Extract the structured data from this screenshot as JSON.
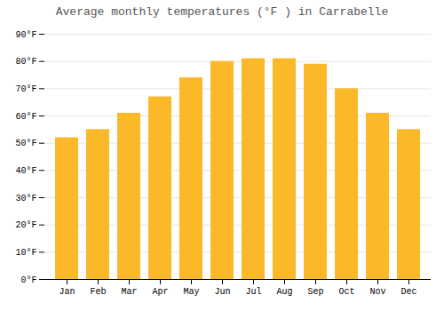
{
  "chart_data": {
    "type": "bar",
    "title": "Average monthly temperatures (°F ) in Carrabelle",
    "categories": [
      "Jan",
      "Feb",
      "Mar",
      "Apr",
      "May",
      "Jun",
      "Jul",
      "Aug",
      "Sep",
      "Oct",
      "Nov",
      "Dec"
    ],
    "values": [
      52,
      55,
      61,
      67,
      74,
      80,
      81,
      81,
      79,
      70,
      61,
      55
    ],
    "color": "#FBB829",
    "ylim": [
      0,
      90
    ],
    "yticks": [
      {
        "value": 0,
        "label": "0°F"
      },
      {
        "value": 10,
        "label": "10°F"
      },
      {
        "value": 20,
        "label": "20°F"
      },
      {
        "value": 30,
        "label": "30°F"
      },
      {
        "value": 40,
        "label": "40°F"
      },
      {
        "value": 50,
        "label": "50°F"
      },
      {
        "value": 60,
        "label": "60°F"
      },
      {
        "value": 70,
        "label": "70°F"
      },
      {
        "value": 80,
        "label": "80°F"
      },
      {
        "value": 90,
        "label": "90°F"
      }
    ],
    "grid": true
  }
}
